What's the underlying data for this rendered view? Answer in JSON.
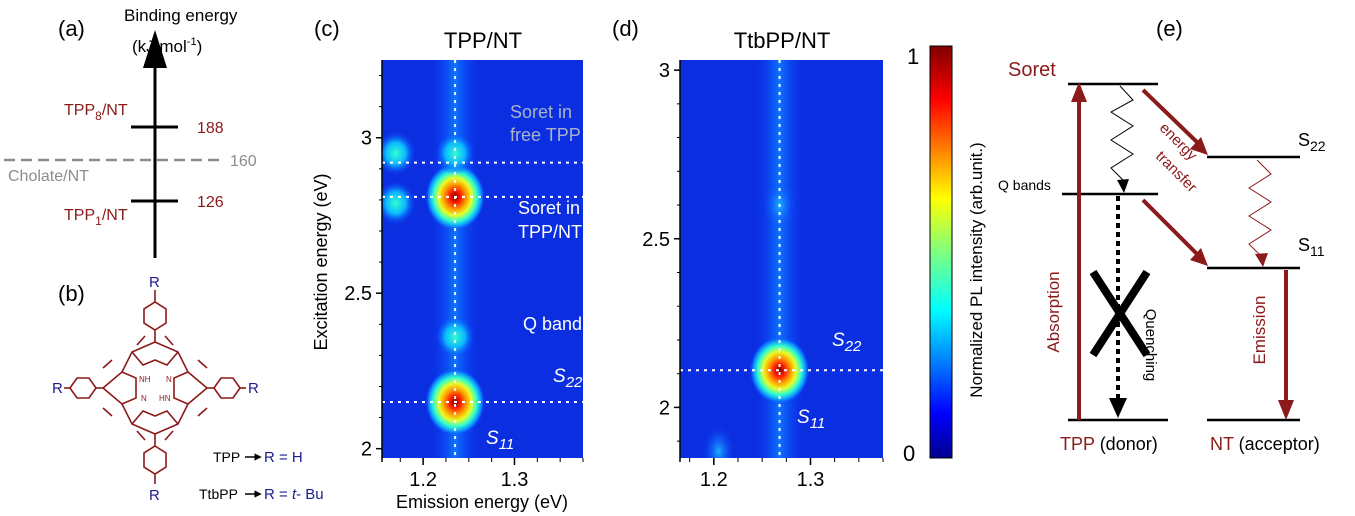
{
  "colors": {
    "dark_red": "#8b1a1a",
    "navy": "#1c1c8c",
    "grey": "#8c8c8c",
    "black": "#000000",
    "white": "#ffffff"
  },
  "panel_a": {
    "label": "(a)",
    "axis_title_line1": "Binding energy",
    "axis_title_line2": "(kJ.mol",
    "axis_title_exp": "-1",
    "axis_title_close": ")",
    "tpp8_main": "TPP",
    "tpp8_sub": "8",
    "tpp8_rest": "/NT",
    "tpp8_value": "188",
    "cholate_label": "Cholate/NT",
    "cholate_value": "160",
    "tpp1_main": "TPP",
    "tpp1_sub": "1",
    "tpp1_rest": "/NT",
    "tpp1_value": "126"
  },
  "panel_b": {
    "label": "(b)",
    "r_symbol": "R",
    "nh_label": "NH",
    "hn_label": "HN",
    "n_label": "N",
    "tpp_name": "TPP",
    "tpp_rhs": "R = H",
    "ttbpp_name": "TtbPP",
    "ttbpp_rhs_prefix": "R = ",
    "ttbpp_rhs_italic": "t",
    "ttbpp_rhs_suffix": "- Bu"
  },
  "panel_c": {
    "label": "(c)",
    "title": "TPP/NT",
    "xlabel": "Emission energy (eV)",
    "ylabel": "Excitation energy (eV)",
    "xticks": [
      "1.2",
      "1.3"
    ],
    "yticks": [
      "2",
      "2.5",
      "3"
    ],
    "ann_soret_free_1": "Soret in",
    "ann_soret_free_2": "free TPP",
    "ann_soret_nt_1": "Soret in",
    "ann_soret_nt_2": "TPP/NT",
    "ann_q_band": "Q band",
    "ann_s22_main": "S",
    "ann_s22_sub": "22",
    "ann_s11_main": "S",
    "ann_s11_sub": "11"
  },
  "panel_d": {
    "label": "(d)",
    "title": "TtbPP/NT",
    "xticks": [
      "1.2",
      "1.3"
    ],
    "yticks": [
      "2",
      "2.5",
      "3"
    ],
    "ann_s22_main": "S",
    "ann_s22_sub": "22",
    "ann_s11_main": "S",
    "ann_s11_sub": "11"
  },
  "colorbar": {
    "label": "Normalized PL intensity (arb.unit.)",
    "max": "1",
    "min": "0"
  },
  "panel_e": {
    "label": "(e)",
    "soret": "Soret",
    "q_bands": "Q bands",
    "energy_transfer_1": "energy",
    "energy_transfer_2": "transfer",
    "s22_main": "S",
    "s22_sub": "22",
    "s11_main": "S",
    "s11_sub": "11",
    "absorption": "Absorption",
    "quenching": "Quenching",
    "emission": "Emission",
    "donor_name": "TPP",
    "donor_role": " (donor)",
    "acceptor_name": "NT",
    "acceptor_role": " (acceptor)"
  },
  "chart_data": [
    {
      "type": "heatmap",
      "title": "TPP/NT",
      "xlabel": "Emission energy (eV)",
      "ylabel": "Excitation energy (eV)",
      "xlim": [
        1.155,
        1.375
      ],
      "ylim": [
        1.97,
        3.25
      ],
      "xticks": [
        1.2,
        1.3
      ],
      "yticks": [
        2,
        2.5,
        3
      ],
      "colorbar": {
        "label": "Normalized PL intensity (arb.unit.)",
        "min": 0,
        "max": 1
      },
      "guides": {
        "x": [
          1.235
        ],
        "y": [
          2.92,
          2.81,
          2.15
        ]
      },
      "peaks": [
        {
          "x": 1.235,
          "y": 2.81,
          "intensity": 1.0
        },
        {
          "x": 1.235,
          "y": 2.15,
          "intensity": 0.95
        },
        {
          "x": 1.235,
          "y": 2.36,
          "intensity": 0.35
        },
        {
          "x": 1.235,
          "y": 2.95,
          "intensity": 0.4
        },
        {
          "x": 1.17,
          "y": 2.79,
          "intensity": 0.35
        },
        {
          "x": 1.17,
          "y": 2.95,
          "intensity": 0.3
        }
      ],
      "annotations": [
        "Soret in free TPP",
        "Soret in TPP/NT",
        "Q band",
        "S22",
        "S11"
      ]
    },
    {
      "type": "heatmap",
      "title": "TtbPP/NT",
      "xlabel": "",
      "ylabel": "",
      "xlim": [
        1.165,
        1.375
      ],
      "ylim": [
        1.85,
        3.03
      ],
      "xticks": [
        1.2,
        1.3
      ],
      "yticks": [
        2,
        2.5,
        3
      ],
      "colorbar": {
        "label": "Normalized PL intensity (arb.unit.)",
        "min": 0,
        "max": 1
      },
      "guides": {
        "x": [
          1.268
        ],
        "y": [
          2.11
        ]
      },
      "peaks": [
        {
          "x": 1.268,
          "y": 2.11,
          "intensity": 1.0
        },
        {
          "x": 1.268,
          "y": 2.6,
          "intensity": 0.25
        },
        {
          "x": 1.205,
          "y": 1.87,
          "intensity": 0.25
        }
      ],
      "annotations": [
        "S22",
        "S11"
      ]
    },
    {
      "type": "diagram",
      "title": "Binding energy (kJ.mol-1)",
      "entries": [
        {
          "name": "TPP8/NT",
          "value": 188
        },
        {
          "name": "Cholate/NT",
          "value": 160
        },
        {
          "name": "TPP1/NT",
          "value": 126
        }
      ]
    }
  ]
}
